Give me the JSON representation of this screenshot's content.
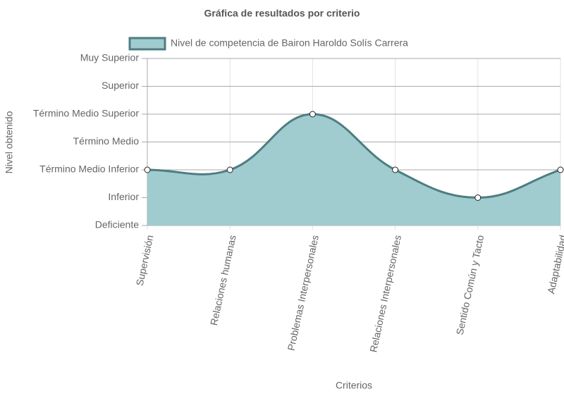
{
  "chart_data": {
    "type": "line",
    "title": "Gráfica de resultados por criterio",
    "x_label": "Criterios",
    "y_label": "Nivel obtenido",
    "categories": [
      "Supervisión",
      "Relaciones humanas",
      "Problemas Interpersonales",
      "Relaciones Interpersonales",
      "Sentido Común y Tacto",
      "Adaptabilidad"
    ],
    "series": [
      {
        "name": "Nivel de competencia de Bairon Haroldo Solís Carrera",
        "color": "#4e7d81",
        "fill": "#a0cbcf",
        "values": [
          3,
          3,
          5,
          3,
          2,
          3
        ]
      }
    ],
    "ylim": [
      1,
      7
    ],
    "yticks": [
      {
        "value": 1,
        "label": "Deficiente"
      },
      {
        "value": 2,
        "label": "Inferior"
      },
      {
        "value": 3,
        "label": "Término Medio Inferior"
      },
      {
        "value": 4,
        "label": "Término Medio"
      },
      {
        "value": 5,
        "label": "Término Medio Superior"
      },
      {
        "value": 6,
        "label": "Superior"
      },
      {
        "value": 7,
        "label": "Muy Superior"
      }
    ],
    "grid": true
  }
}
